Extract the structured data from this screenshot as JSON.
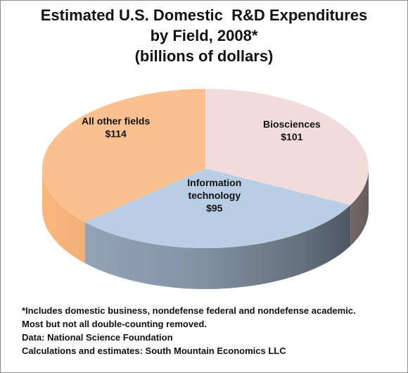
{
  "chart_data": {
    "type": "pie",
    "style": "3d",
    "title_lines": [
      "Estimated U.S. Domestic  R&D Expenditures",
      "by Field, 2008*",
      "(billions of dollars)"
    ],
    "unit": "billions of dollars",
    "slices": [
      {
        "name": "Biosciences",
        "label_lines": [
          "Biosciences"
        ],
        "value_label": "$101",
        "value": 101,
        "color": "#f2dcdb",
        "side_color": "#b9a9a8"
      },
      {
        "name": "Information technology",
        "label_lines": [
          "Information",
          "technology"
        ],
        "value_label": "$95",
        "value": 95,
        "color": "#b9cde5",
        "side_color": "#7f8ea0"
      },
      {
        "name": "All other fields",
        "label_lines": [
          "All other fields"
        ],
        "value_label": "$114",
        "value": 114,
        "color": "#fac090",
        "side_color": "#d49a68"
      }
    ],
    "legend": "none"
  },
  "footnotes": [
    "*Includes domestic business, nondefense federal and nondefense academic.",
    "Most but not all double-counting removed.",
    "Data: National Science Foundation",
    "Calculations and estimates: South Mountain Economics LLC"
  ],
  "colors": {
    "frame_border": "#8c8c8c",
    "text": "#111111"
  }
}
